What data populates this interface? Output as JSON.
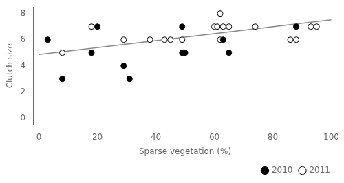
{
  "chart_data": {
    "type": "scatter",
    "xlabel": "Sparse vegetation (%)",
    "ylabel": "Clutch size",
    "xlim": [
      -2,
      102
    ],
    "ylim": [
      -0.5,
      8.5
    ],
    "xticks": [
      0,
      20,
      40,
      60,
      80,
      100
    ],
    "yticks": [
      0,
      2,
      4,
      6,
      8
    ],
    "grid": false,
    "legend": "lower right",
    "series": [
      {
        "name": "2010",
        "color": "black",
        "marker": "circle",
        "x": [
          3,
          8,
          18,
          20,
          29,
          31,
          49,
          49,
          50,
          63,
          65,
          88
        ],
        "values": [
          6,
          3,
          5,
          7,
          4,
          3,
          7,
          5,
          5,
          6,
          5,
          7
        ]
      },
      {
        "name": "2011",
        "color": "white",
        "marker": "circle",
        "x": [
          8,
          18,
          29,
          38,
          43,
          45,
          49,
          60,
          61,
          62,
          62,
          63,
          65,
          74,
          86,
          88,
          93,
          95
        ],
        "values": [
          5,
          7,
          6,
          6,
          6,
          6,
          6,
          7,
          7,
          6,
          8,
          7,
          7,
          7,
          6,
          6,
          7,
          7
        ]
      },
      {
        "type": "line",
        "color": "#888888",
        "x": [
          0,
          100
        ],
        "values": [
          4.87,
          7.52
        ]
      }
    ]
  }
}
